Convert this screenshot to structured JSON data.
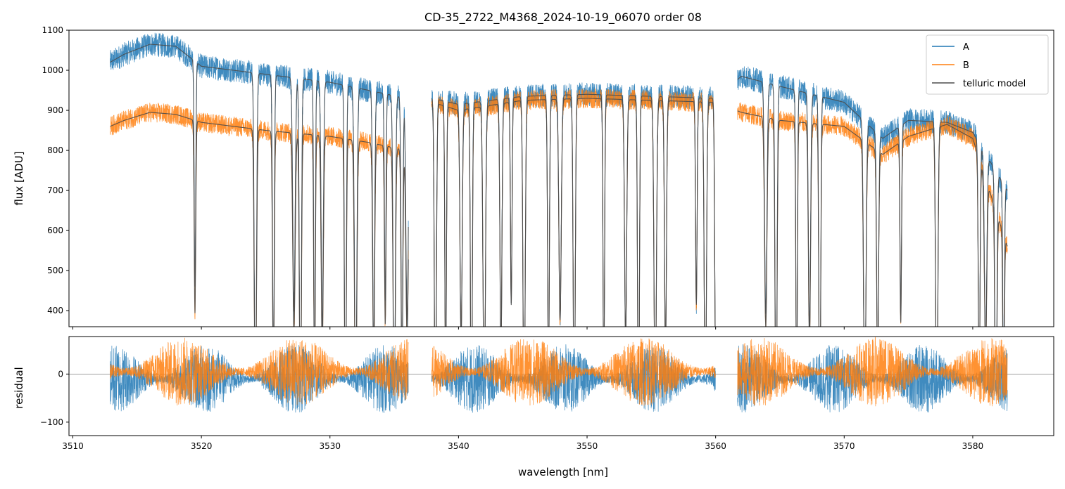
{
  "colors": {
    "A": "#1f77b4",
    "B": "#ff7f0e",
    "telluric": "#4d4d4d",
    "frame": "#000000",
    "zero_line": "#808080"
  },
  "chart_data": [
    {
      "type": "line",
      "panel": "flux",
      "title": "CD-35_2722_M4368_2024-10-19_06070  order 08",
      "xlabel": "",
      "ylabel": "flux [ADU]",
      "xlim": [
        3509.7,
        3586.3
      ],
      "ylim": [
        360,
        1100
      ],
      "xticks": [
        3510,
        3520,
        3530,
        3540,
        3550,
        3560,
        3570,
        3580
      ],
      "xtick_labels_visible": false,
      "yticks": [
        400,
        500,
        600,
        700,
        800,
        900,
        1000,
        1100
      ],
      "ytick_labels": [
        "400",
        "500",
        "600",
        "700",
        "800",
        "900",
        "1000",
        "1100"
      ],
      "legend": {
        "placement": "top-right",
        "entries": [
          "A",
          "B",
          "telluric model"
        ]
      },
      "data_gaps_nm": [
        [
          3536.1,
          3537.9
        ],
        [
          3560.0,
          3561.7
        ]
      ],
      "x_range_nm": [
        3512.9,
        3582.7
      ],
      "series": [
        {
          "name": "A",
          "continuum_x": [
            3512.9,
            3514,
            3516,
            3518,
            3520,
            3525,
            3530,
            3533,
            3536,
            3538,
            3540,
            3545,
            3550,
            3555,
            3560,
            3562,
            3565,
            3570,
            3573,
            3575,
            3578,
            3580,
            3582.7
          ],
          "continuum_y": [
            1020,
            1040,
            1065,
            1060,
            1010,
            990,
            970,
            950,
            930,
            930,
            915,
            935,
            940,
            935,
            930,
            985,
            960,
            920,
            830,
            875,
            870,
            845,
            700
          ]
        },
        {
          "name": "B",
          "continuum_x": [
            3512.9,
            3514,
            3516,
            3518,
            3520,
            3525,
            3530,
            3533,
            3536,
            3538,
            3540,
            3545,
            3550,
            3555,
            3560,
            3562,
            3565,
            3570,
            3573,
            3575,
            3578,
            3580,
            3582.7
          ],
          "continuum_y": [
            860,
            875,
            895,
            890,
            870,
            850,
            835,
            820,
            800,
            920,
            900,
            925,
            930,
            925,
            920,
            895,
            875,
            860,
            790,
            835,
            865,
            830,
            560
          ]
        },
        {
          "name": "telluric model",
          "description_of_lines_nm": [
            3519.5,
            3524.2,
            3525.6,
            3527.2,
            3527.7,
            3528.8,
            3529.4,
            3531.2,
            3532.0,
            3533.4,
            3534.3,
            3535.0,
            3535.6,
            3536.0,
            3538.2,
            3539.0,
            3540.2,
            3541.0,
            3542.0,
            3543.3,
            3544.1,
            3545.1,
            3547.0,
            3547.9,
            3549.0,
            3551.3,
            3553.0,
            3554.0,
            3555.3,
            3556.1,
            3558.5,
            3559.2,
            3560.0,
            3563.9,
            3564.7,
            3566.3,
            3567.3,
            3568.1,
            3571.6,
            3572.6,
            3574.4,
            3577.2,
            3580.5,
            3581.0,
            3581.8,
            3582.4
          ]
        }
      ]
    },
    {
      "type": "line",
      "panel": "residual",
      "xlabel": "wavelength [nm]",
      "ylabel": "residual",
      "xlim": [
        3509.7,
        3586.3
      ],
      "ylim": [
        -128,
        78
      ],
      "xticks": [
        3510,
        3520,
        3530,
        3540,
        3550,
        3560,
        3570,
        3580
      ],
      "xtick_labels": [
        "3510",
        "3520",
        "3530",
        "3540",
        "3550",
        "3560",
        "3570",
        "3580"
      ],
      "yticks": [
        -100,
        0
      ],
      "ytick_labels": [
        "−100",
        "0"
      ],
      "zero_line": 0,
      "series": [
        {
          "name": "A",
          "typical_amplitude": 40
        },
        {
          "name": "B",
          "typical_amplitude": 40
        }
      ]
    }
  ]
}
